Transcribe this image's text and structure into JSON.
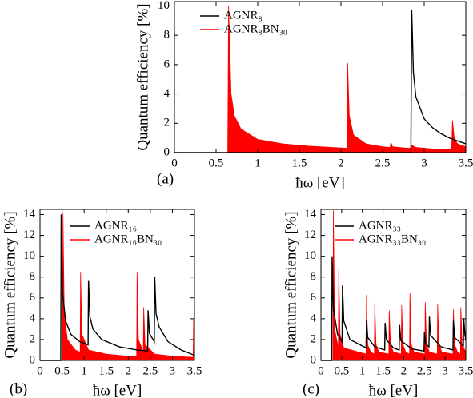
{
  "chart_data": [
    {
      "type": "line",
      "panel_label": "(a)",
      "xlabel": "ħω [eV]",
      "ylabel": "Quantum efficiency [%]",
      "xlim": [
        0,
        3.5
      ],
      "ylim": [
        0,
        10.3
      ],
      "xticks": [
        0,
        0.5,
        1,
        1.5,
        2,
        2.5,
        3,
        3.5
      ],
      "yticks": [
        0,
        2,
        4,
        6,
        8,
        10
      ],
      "series": [
        {
          "name": "AGNR₈",
          "color": "#000000",
          "fill": false,
          "x": [
            0,
            2.84,
            2.85,
            2.87,
            2.9,
            3.0,
            3.1,
            3.2,
            3.3,
            3.4,
            3.5
          ],
          "values": [
            0,
            0,
            9.7,
            5.5,
            3.8,
            2.3,
            1.7,
            1.3,
            1.0,
            0.8,
            0.6
          ]
        },
        {
          "name": "AGNR₈BN₃₀",
          "color": "#ff0000",
          "fill": true,
          "x": [
            0,
            0.64,
            0.65,
            0.68,
            0.72,
            0.8,
            1.0,
            1.3,
            1.6,
            1.9,
            2.07,
            2.08,
            2.1,
            2.15,
            2.3,
            2.5,
            2.59,
            2.6,
            2.62,
            2.8,
            2.84,
            2.85,
            2.9,
            3.1,
            3.33,
            3.34,
            3.36,
            3.4,
            3.5
          ],
          "values": [
            0,
            0,
            10,
            4,
            2.5,
            1.6,
            0.9,
            0.6,
            0.45,
            0.35,
            0.3,
            6.1,
            2.5,
            1.2,
            0.6,
            0.4,
            0.35,
            0.7,
            0.4,
            0.3,
            0.3,
            0.5,
            0.35,
            0.25,
            0.2,
            2.2,
            1.0,
            0.6,
            0.4
          ]
        }
      ]
    },
    {
      "type": "line",
      "panel_label": "(b)",
      "xlabel": "ħω [eV]",
      "ylabel": "Quantum efficiency [%]",
      "xlim": [
        0,
        3.5
      ],
      "ylim": [
        0,
        14.5
      ],
      "xticks": [
        0,
        0.5,
        1,
        1.5,
        2,
        2.5,
        3,
        3.5
      ],
      "yticks": [
        0,
        2,
        4,
        6,
        8,
        10,
        12,
        14
      ],
      "series": [
        {
          "name": "AGNR₁₆",
          "color": "#000000",
          "fill": false,
          "x": [
            0,
            0.47,
            0.48,
            0.51,
            0.58,
            0.7,
            0.9,
            1.09,
            1.1,
            1.13,
            1.2,
            1.4,
            1.8,
            2.2,
            2.44,
            2.45,
            2.48,
            2.59,
            2.6,
            2.63,
            2.7,
            2.9,
            3.2,
            3.5
          ],
          "values": [
            0,
            0,
            14,
            6.5,
            3.8,
            2.5,
            1.8,
            1.5,
            7.7,
            4.2,
            3.0,
            2.0,
            1.3,
            1.0,
            0.9,
            4.8,
            2.6,
            1.8,
            8.0,
            4.5,
            3.2,
            1.8,
            1.0,
            0.5
          ]
        },
        {
          "name": "AGNR₁₆BN₃₀",
          "color": "#ff0000",
          "fill": true,
          "x": [
            0,
            0.51,
            0.52,
            0.55,
            0.62,
            0.8,
            0.91,
            0.92,
            0.95,
            1.1,
            1.5,
            2.0,
            2.19,
            2.2,
            2.23,
            2.34,
            2.35,
            2.38,
            2.6,
            3.0,
            3.47,
            3.48,
            3.5
          ],
          "values": [
            0,
            0,
            14.2,
            4.5,
            2.0,
            1.0,
            0.8,
            8.5,
            2.5,
            1.0,
            0.6,
            0.4,
            0.35,
            8.5,
            2.0,
            0.8,
            5.1,
            1.5,
            0.6,
            0.4,
            0.3,
            4.0,
            2.0
          ]
        }
      ]
    },
    {
      "type": "line",
      "panel_label": "(c)",
      "xlabel": "ħω [eV]",
      "ylabel": "Quantum efficiency [%]",
      "xlim": [
        0,
        3.5
      ],
      "ylim": [
        0,
        14.5
      ],
      "xticks": [
        0,
        0.5,
        1,
        1.5,
        2,
        2.5,
        3,
        3.5
      ],
      "yticks": [
        0,
        2,
        4,
        6,
        8,
        10,
        12,
        14
      ],
      "series": [
        {
          "name": "AGNR₃₃",
          "color": "#000000",
          "fill": false,
          "x": [
            0,
            0.26,
            0.27,
            0.3,
            0.4,
            0.51,
            0.52,
            0.55,
            0.7,
            1.09,
            1.1,
            1.13,
            1.3,
            1.54,
            1.55,
            1.58,
            1.75,
            1.89,
            1.9,
            1.93,
            2.2,
            2.49,
            2.5,
            2.53,
            2.61,
            2.62,
            2.65,
            2.9,
            3.19,
            3.2,
            3.23,
            3.44,
            3.45,
            3.48,
            3.5
          ],
          "values": [
            0,
            0,
            10,
            5,
            2.5,
            1.8,
            7.2,
            3.8,
            2.0,
            1.2,
            3.9,
            2.2,
            1.3,
            1.0,
            3.6,
            2.0,
            1.2,
            1.0,
            3.4,
            1.9,
            1.1,
            0.9,
            2.7,
            1.6,
            1.3,
            4.2,
            2.4,
            1.3,
            1.0,
            3.8,
            2.2,
            1.4,
            4.0,
            2.4,
            2.0
          ]
        },
        {
          "name": "AGNR₃₃BN₃₀",
          "color": "#ff0000",
          "fill": true,
          "x": [
            0,
            0.29,
            0.3,
            0.33,
            0.42,
            0.43,
            0.46,
            0.55,
            1.09,
            1.1,
            1.13,
            1.2,
            1.29,
            1.3,
            1.33,
            1.4,
            1.64,
            1.65,
            1.68,
            1.75,
            1.94,
            1.95,
            1.98,
            2.05,
            2.14,
            2.15,
            2.18,
            2.25,
            2.51,
            2.52,
            2.55,
            2.62,
            2.81,
            2.82,
            2.85,
            2.92,
            3.19,
            3.2,
            3.23,
            3.3,
            3.37,
            3.38,
            3.41,
            3.5
          ],
          "values": [
            0,
            0,
            14.4,
            3,
            1.2,
            8.7,
            2.5,
            1.2,
            0.6,
            6.3,
            1.5,
            0.8,
            0.6,
            5.5,
            1.5,
            0.8,
            0.6,
            4.8,
            1.5,
            0.8,
            0.6,
            5.3,
            1.5,
            0.8,
            0.6,
            6.5,
            1.5,
            0.8,
            0.6,
            5.6,
            1.5,
            0.8,
            0.6,
            5.4,
            1.5,
            0.8,
            0.6,
            4.9,
            1.5,
            0.8,
            0.6,
            5.1,
            1.5,
            0.8
          ]
        }
      ]
    }
  ]
}
